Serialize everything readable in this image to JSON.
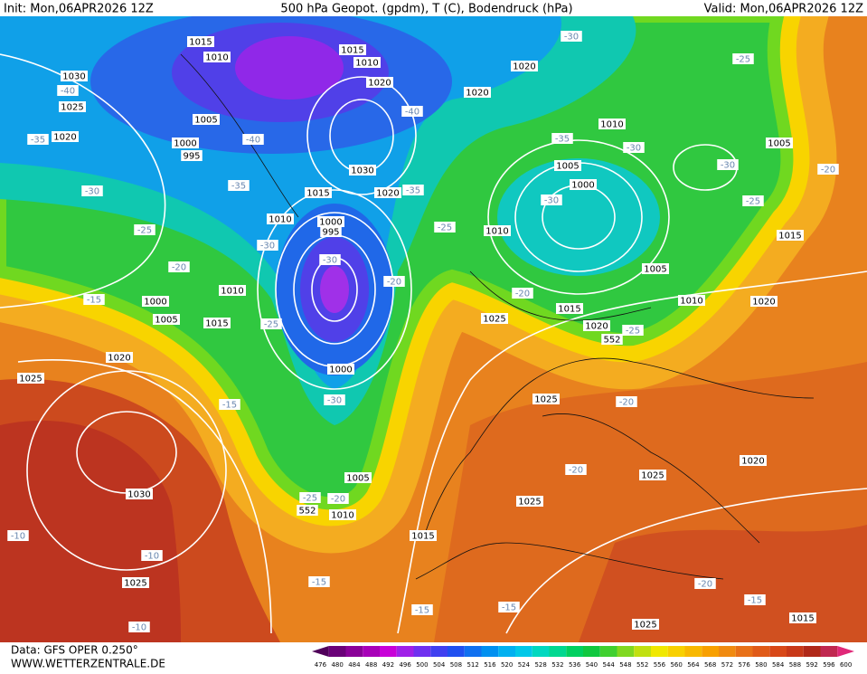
{
  "header": {
    "init": "Init: Mon,06APR2026 12Z",
    "title": "500 hPa Geopot. (gpdm), T (C), Bodendruck (hPa)",
    "valid": "Valid: Mon,06APR2026 12Z"
  },
  "footer": {
    "source": "Data: GFS OPER 0.250°",
    "site": "WWW.WETTERZENTRALE.DE"
  },
  "colorbar": {
    "levels": [
      476,
      480,
      484,
      488,
      492,
      496,
      500,
      504,
      508,
      512,
      516,
      520,
      524,
      528,
      532,
      536,
      540,
      544,
      548,
      552,
      556,
      560,
      564,
      568,
      572,
      576,
      580,
      584,
      588,
      592,
      596,
      600
    ],
    "colors": [
      "#50005a",
      "#6a0078",
      "#8a0098",
      "#a800b8",
      "#c800d8",
      "#a020e8",
      "#7030f0",
      "#4040f0",
      "#2050f0",
      "#1070f0",
      "#0090f0",
      "#00b0f0",
      "#00c8e8",
      "#00d8c0",
      "#00d890",
      "#00d060",
      "#10c840",
      "#40d030",
      "#80d820",
      "#c0e010",
      "#f0e800",
      "#f8d000",
      "#f8b800",
      "#f8a000",
      "#f08a10",
      "#e87018",
      "#e05a18",
      "#d84818",
      "#c83818",
      "#b02818",
      "#c02850",
      "#e02878"
    ]
  },
  "isobar_labels": [
    "1015",
    "1010",
    "1015",
    "1010",
    "1030",
    "1020",
    "1020",
    "1020",
    "1025",
    "1005",
    "1010",
    "1020",
    "1000",
    "995",
    "1005",
    "1030",
    "1015",
    "1020",
    "1000",
    "1005",
    "1010",
    "1000",
    "995",
    "1010",
    "1015",
    "1005",
    "1000",
    "1010",
    "1010",
    "1020",
    "1005",
    "1015",
    "1025",
    "1015",
    "1020",
    "552",
    "1020",
    "1025",
    "1000",
    "1025",
    "1020",
    "1025",
    "1030",
    "1005",
    "1010",
    "1025",
    "1015",
    "1025",
    "1025",
    "1015",
    "552"
  ],
  "temperature_labels": [
    "-40",
    "-35",
    "-40",
    "-40",
    "-35",
    "-30",
    "-25",
    "-20",
    "-15",
    "-30",
    "-35",
    "-25",
    "-30",
    "-35",
    "-30",
    "-30",
    "-25",
    "-20",
    "-25",
    "-30",
    "-20",
    "-30",
    "-20",
    "-25",
    "-20",
    "-25",
    "-30",
    "-15",
    "-25",
    "-20",
    "-20",
    "-10",
    "-10",
    "-15",
    "-15",
    "-15",
    "-20",
    "-15",
    "-10"
  ]
}
